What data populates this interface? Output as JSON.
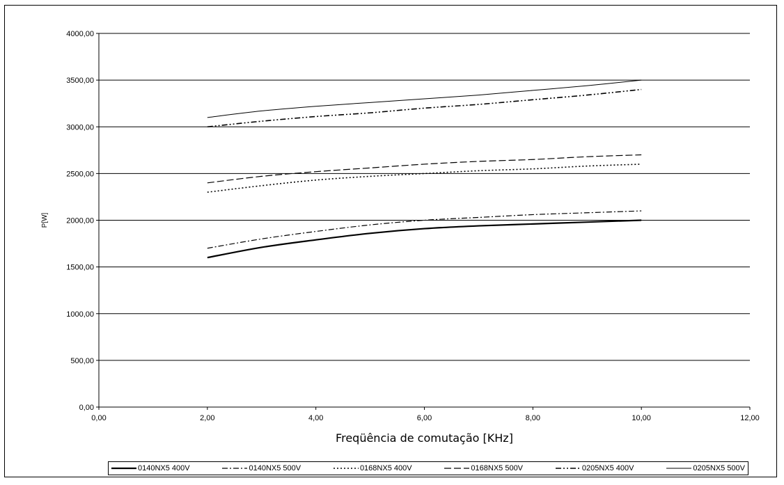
{
  "chart_data": {
    "type": "line",
    "xlabel": "Freqüência de comutação [KHz]",
    "ylabel": "P[W]",
    "xlim": [
      0,
      12
    ],
    "ylim": [
      0,
      4000
    ],
    "xticks": [
      "0,00",
      "2,00",
      "4,00",
      "6,00",
      "8,00",
      "10,00",
      "12,00"
    ],
    "yticks": [
      "0,00",
      "500,00",
      "1000,00",
      "1500,00",
      "2000,00",
      "2500,00",
      "3000,00",
      "3500,00",
      "4000,00"
    ],
    "grid": "horizontal",
    "legend_position": "bottom",
    "series": [
      {
        "name": "0140NX5 400V",
        "x": [
          2,
          3,
          4,
          5,
          6,
          7,
          8,
          9,
          10
        ],
        "y": [
          1600,
          1710,
          1790,
          1860,
          1910,
          1940,
          1960,
          1980,
          2000
        ],
        "style": "solid-thick",
        "color": "#000000"
      },
      {
        "name": "0140NX5 500V",
        "x": [
          2,
          3,
          4,
          5,
          6,
          7,
          8,
          9,
          10
        ],
        "y": [
          1700,
          1800,
          1880,
          1950,
          2000,
          2030,
          2060,
          2080,
          2100
        ],
        "style": "dash-dot",
        "color": "#000000"
      },
      {
        "name": "0168NX5 400V",
        "x": [
          2,
          3,
          4,
          5,
          6,
          7,
          8,
          9,
          10
        ],
        "y": [
          2300,
          2370,
          2430,
          2470,
          2500,
          2530,
          2550,
          2580,
          2600
        ],
        "style": "dotted",
        "color": "#000000"
      },
      {
        "name": "0168NX5 500V",
        "x": [
          2,
          3,
          4,
          5,
          6,
          7,
          8,
          9,
          10
        ],
        "y": [
          2400,
          2470,
          2520,
          2560,
          2600,
          2630,
          2650,
          2680,
          2700
        ],
        "style": "dashed",
        "color": "#000000"
      },
      {
        "name": "0205NX5 400V",
        "x": [
          2,
          3,
          4,
          5,
          6,
          7,
          8,
          9,
          10
        ],
        "y": [
          3000,
          3060,
          3110,
          3150,
          3200,
          3240,
          3290,
          3340,
          3400
        ],
        "style": "dash-dot-dot",
        "color": "#000000"
      },
      {
        "name": "0205NX5 500V",
        "x": [
          2,
          3,
          4,
          5,
          6,
          7,
          8,
          9,
          10
        ],
        "y": [
          3100,
          3170,
          3220,
          3260,
          3300,
          3340,
          3390,
          3440,
          3500
        ],
        "style": "solid-thin",
        "color": "#000000"
      }
    ]
  }
}
